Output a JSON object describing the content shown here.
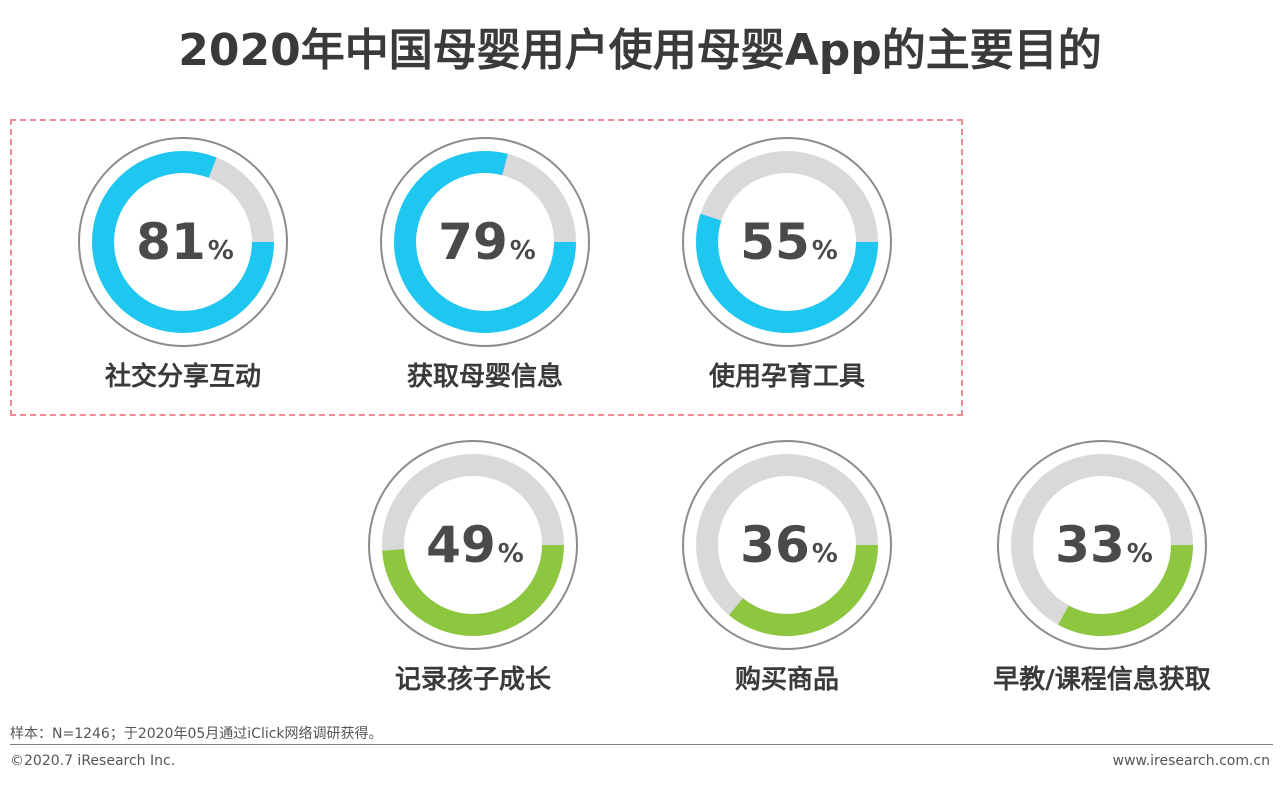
{
  "title": "2020年中国母婴用户使用母婴App的主要目的",
  "chart_data": {
    "type": "pie",
    "title": "2020年中国母婴用户使用母婴App的主要目的",
    "unit": "%",
    "remainder_color": "#d9d9d9",
    "series": [
      {
        "category": "社交分享互动",
        "value": 81,
        "color": "#1ec7f0",
        "highlighted": true
      },
      {
        "category": "获取母婴信息",
        "value": 79,
        "color": "#1ec7f0",
        "highlighted": true
      },
      {
        "category": "使用孕育工具",
        "value": 55,
        "color": "#1ec7f0",
        "highlighted": true
      },
      {
        "category": "记录孩子成长",
        "value": 49,
        "color": "#8dc63f",
        "highlighted": false
      },
      {
        "category": "购买商品",
        "value": 36,
        "color": "#8dc63f",
        "highlighted": false
      },
      {
        "category": "早教/课程信息获取",
        "value": 33,
        "color": "#8dc63f",
        "highlighted": false
      }
    ]
  },
  "note": "样本：N=1246；于2020年05月通过iClick网络调研获得。",
  "footer": {
    "copyright": "©2020.7 iResearch Inc.",
    "website": "www.iresearch.com.cn"
  }
}
